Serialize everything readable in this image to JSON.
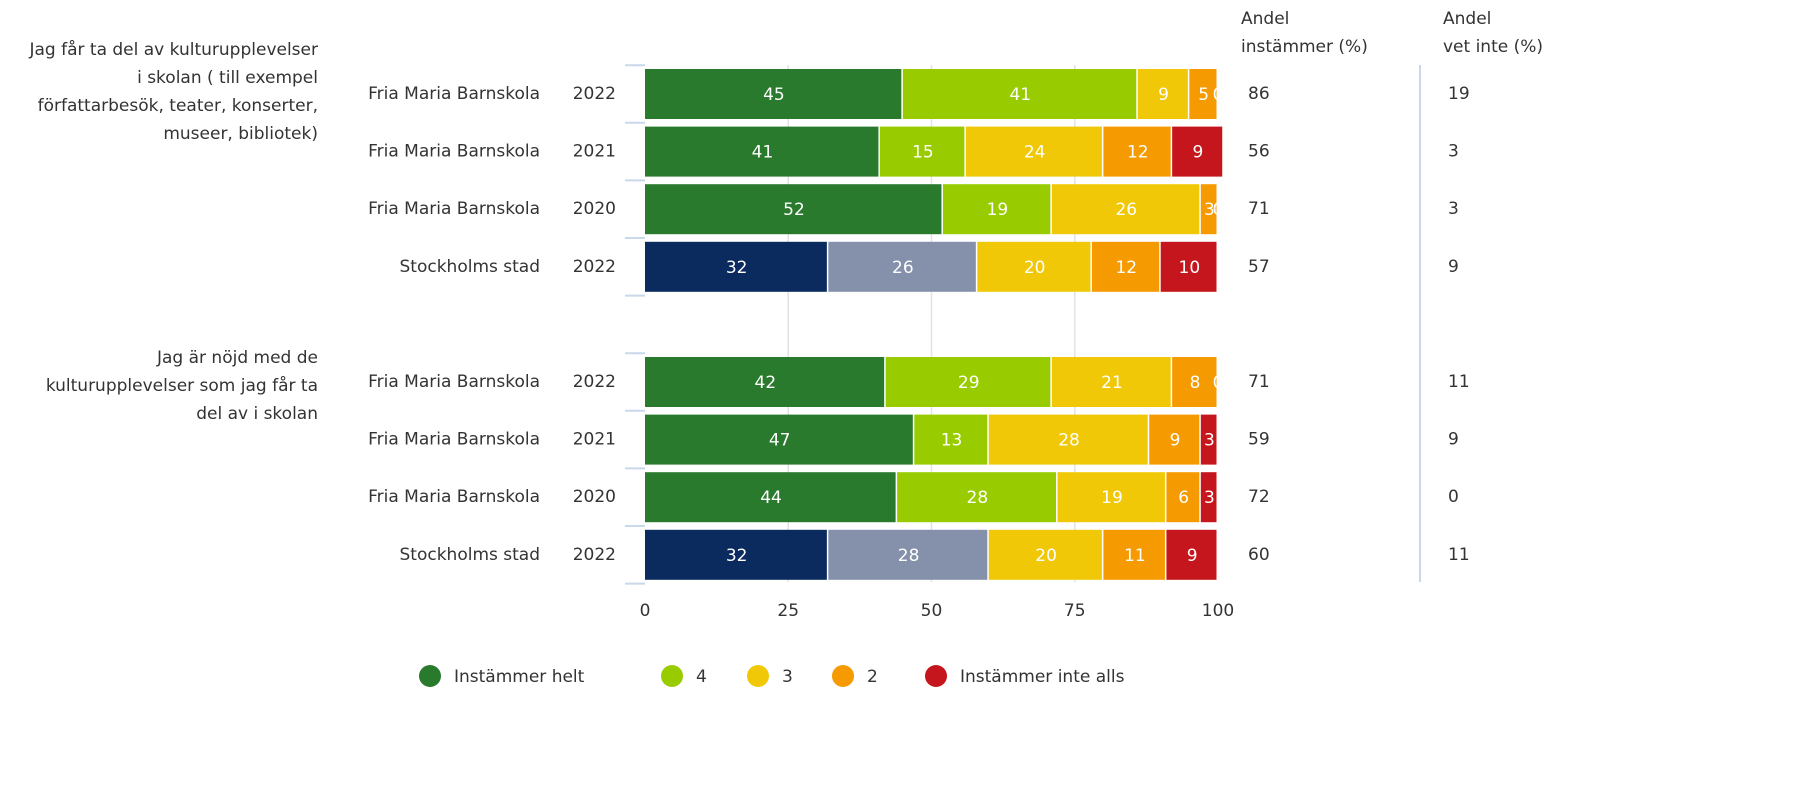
{
  "chart_data": {
    "type": "stacked-bar-horizontal",
    "questions": [
      [
        "Jag får ta del av kulturupplevelser",
        "i skolan ( till exempel",
        "författarbesök, teater, konserter,",
        "museer, bibliotek)"
      ],
      [
        "Jag är nöjd med de",
        "kulturupplevelser som jag får ta",
        "del av i skolan"
      ]
    ],
    "categories": [
      "Fria Maria Barnskola",
      "Fria Maria Barnskola",
      "Fria Maria Barnskola",
      "Stockholms stad",
      null,
      "Fria Maria Barnskola",
      "Fria Maria Barnskola",
      "Fria Maria Barnskola",
      "Stockholms stad"
    ],
    "years": [
      "2022",
      "2021",
      "2020",
      "2022",
      null,
      "2022",
      "2021",
      "2020",
      "2022"
    ],
    "series": [
      {
        "name": "Instämmer helt",
        "color": "#2a7a2e",
        "colors": [
          "#2a7a2e",
          "#2a7a2e",
          "#2a7a2e",
          "#0b2a5e",
          null,
          "#2a7a2e",
          "#2a7a2e",
          "#2a7a2e",
          "#0b2a5e"
        ],
        "values": [
          45,
          41,
          52,
          32,
          null,
          42,
          47,
          44,
          32
        ]
      },
      {
        "name": "4",
        "color": "#99cc00",
        "colors": [
          "#99cc00",
          "#99cc00",
          "#99cc00",
          "#8590aa",
          null,
          "#99cc00",
          "#99cc00",
          "#99cc00",
          "#8590aa"
        ],
        "values": [
          41,
          15,
          19,
          26,
          null,
          29,
          13,
          28,
          28
        ]
      },
      {
        "name": "3",
        "color": "#f0c808",
        "values": [
          9,
          24,
          26,
          20,
          null,
          21,
          28,
          19,
          20
        ]
      },
      {
        "name": "2",
        "color": "#f59a00",
        "values": [
          5,
          12,
          3,
          12,
          null,
          8,
          9,
          6,
          11
        ]
      },
      {
        "name": "Instämmer inte alls",
        "color": "#c4161c",
        "values": [
          0,
          9,
          0,
          10,
          null,
          0,
          3,
          3,
          9
        ]
      }
    ],
    "andel_instammer_header": [
      "Andel",
      "instämmer (%)"
    ],
    "andel_instammer": [
      86,
      56,
      71,
      57,
      null,
      71,
      59,
      72,
      60
    ],
    "andel_vet_inte_header": [
      "Andel",
      "vet inte (%)"
    ],
    "andel_vet_inte": [
      19,
      3,
      3,
      9,
      null,
      11,
      9,
      0,
      11
    ],
    "xlim": [
      0,
      100
    ],
    "xticks": [
      0,
      25,
      50,
      75,
      100
    ],
    "grid": true
  }
}
